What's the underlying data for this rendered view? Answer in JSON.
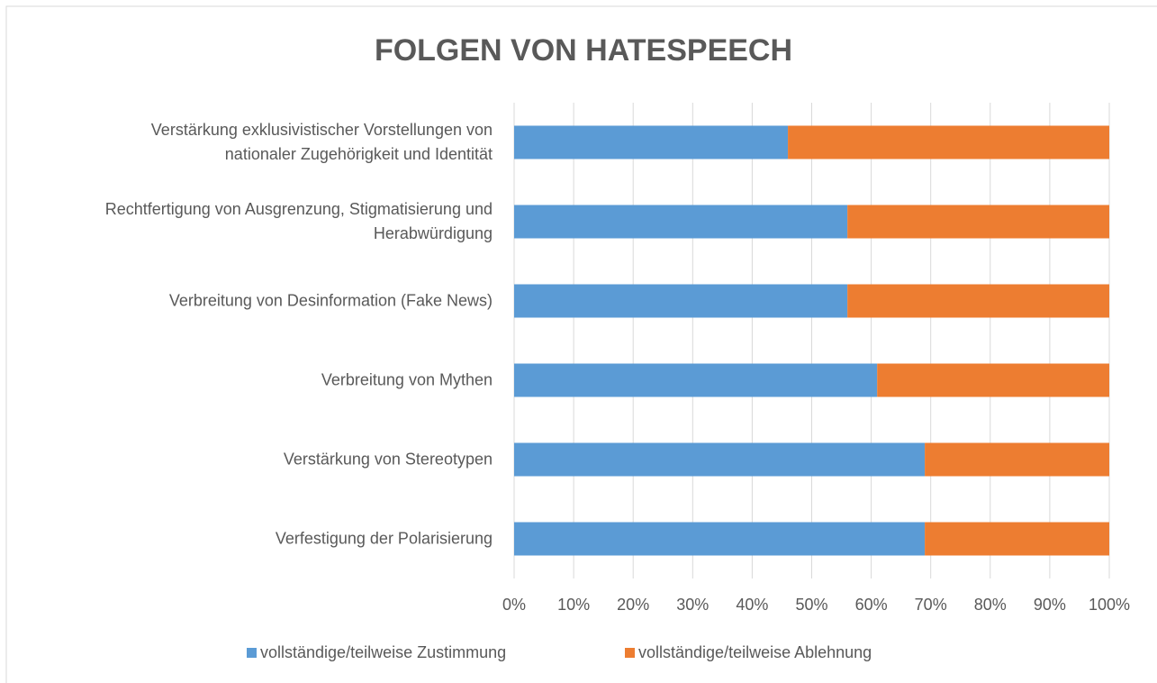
{
  "chart_data": {
    "type": "stacked_barh",
    "title": "FOLGEN VON HATESPEECH",
    "categories": [
      "Verstärkung exklusivistischer Vorstellungen von\nnationaler Zugehörigkeit und Identität",
      "Rechtfertigung von Ausgrenzung, Stigmatisierung und\nHerabwürdigung",
      "Verbreitung von Desinformation (Fake News)",
      "Verbreitung von Mythen",
      "Verstärkung von Stereotypen",
      "Verfestigung der Polarisierung"
    ],
    "series": [
      {
        "name": "vollständige/teilweise Zustimmung",
        "color": "#5b9bd5",
        "values": [
          46,
          56,
          56,
          61,
          69,
          69
        ]
      },
      {
        "name": "vollständige/teilweise Ablehnung",
        "color": "#ed7d31",
        "values": [
          54,
          44,
          44,
          39,
          31,
          31
        ]
      }
    ],
    "xlim": [
      0,
      100
    ],
    "xticks": [
      {
        "value": 0,
        "label": "0%"
      },
      {
        "value": 10,
        "label": "10%"
      },
      {
        "value": 20,
        "label": "20%"
      },
      {
        "value": 30,
        "label": "30%"
      },
      {
        "value": 40,
        "label": "40%"
      },
      {
        "value": 50,
        "label": "50%"
      },
      {
        "value": 60,
        "label": "60%"
      },
      {
        "value": 70,
        "label": "70%"
      },
      {
        "value": 80,
        "label": "80%"
      },
      {
        "value": 90,
        "label": "90%"
      },
      {
        "value": 100,
        "label": "100%"
      }
    ],
    "grid": true,
    "legend": "bottom"
  }
}
